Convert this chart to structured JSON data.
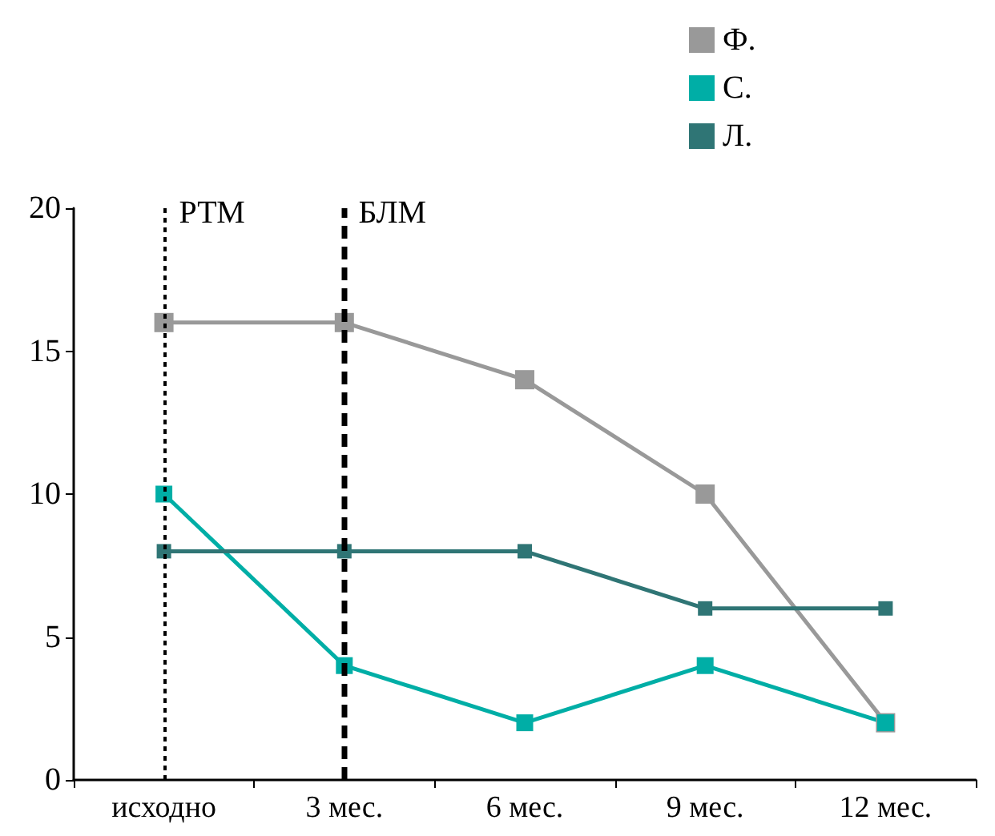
{
  "chart_data": {
    "type": "line",
    "categories": [
      "исходно",
      "3 мес.",
      "6 мес.",
      "9 мес.",
      "12 мес."
    ],
    "series": [
      {
        "name": "Ф.",
        "color": "#999999",
        "values": [
          16,
          16,
          14,
          10,
          2
        ]
      },
      {
        "name": "С.",
        "color": "#00aea6",
        "values": [
          10,
          4,
          2,
          4,
          2
        ]
      },
      {
        "name": "Л.",
        "color": "#2f7575",
        "values": [
          8,
          8,
          8,
          6,
          6
        ]
      }
    ],
    "ylim": [
      0,
      20
    ],
    "yticks": [
      0,
      5,
      10,
      15,
      20
    ],
    "grid": false,
    "legend": "top right",
    "marker": "square",
    "line_style": "solid",
    "ref_lines": [
      {
        "axis": "x",
        "value": "исходно",
        "label": "РТМ",
        "line_style": "dotted",
        "color": "#000000"
      },
      {
        "axis": "x",
        "value": "3 мес.",
        "label": "БЛМ",
        "line_style": "dashed",
        "color": "#000000"
      }
    ]
  }
}
